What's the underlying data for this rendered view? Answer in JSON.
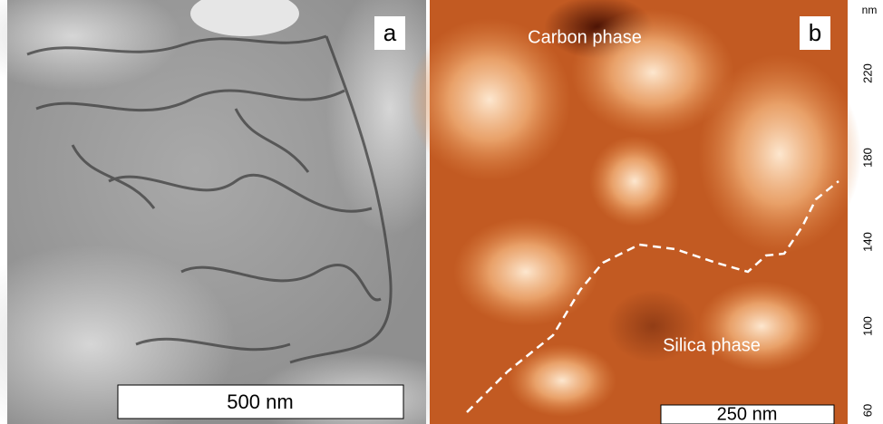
{
  "panels": [
    {
      "label": "a",
      "scale_bar": "500 nm"
    },
    {
      "label": "b",
      "scale_bar": "250 nm",
      "annotations": [
        "Carbon phase",
        "Silica phase"
      ],
      "colorbar": {
        "unit": "nm",
        "ticks": [
          60,
          100,
          140,
          180,
          220
        ]
      }
    }
  ]
}
